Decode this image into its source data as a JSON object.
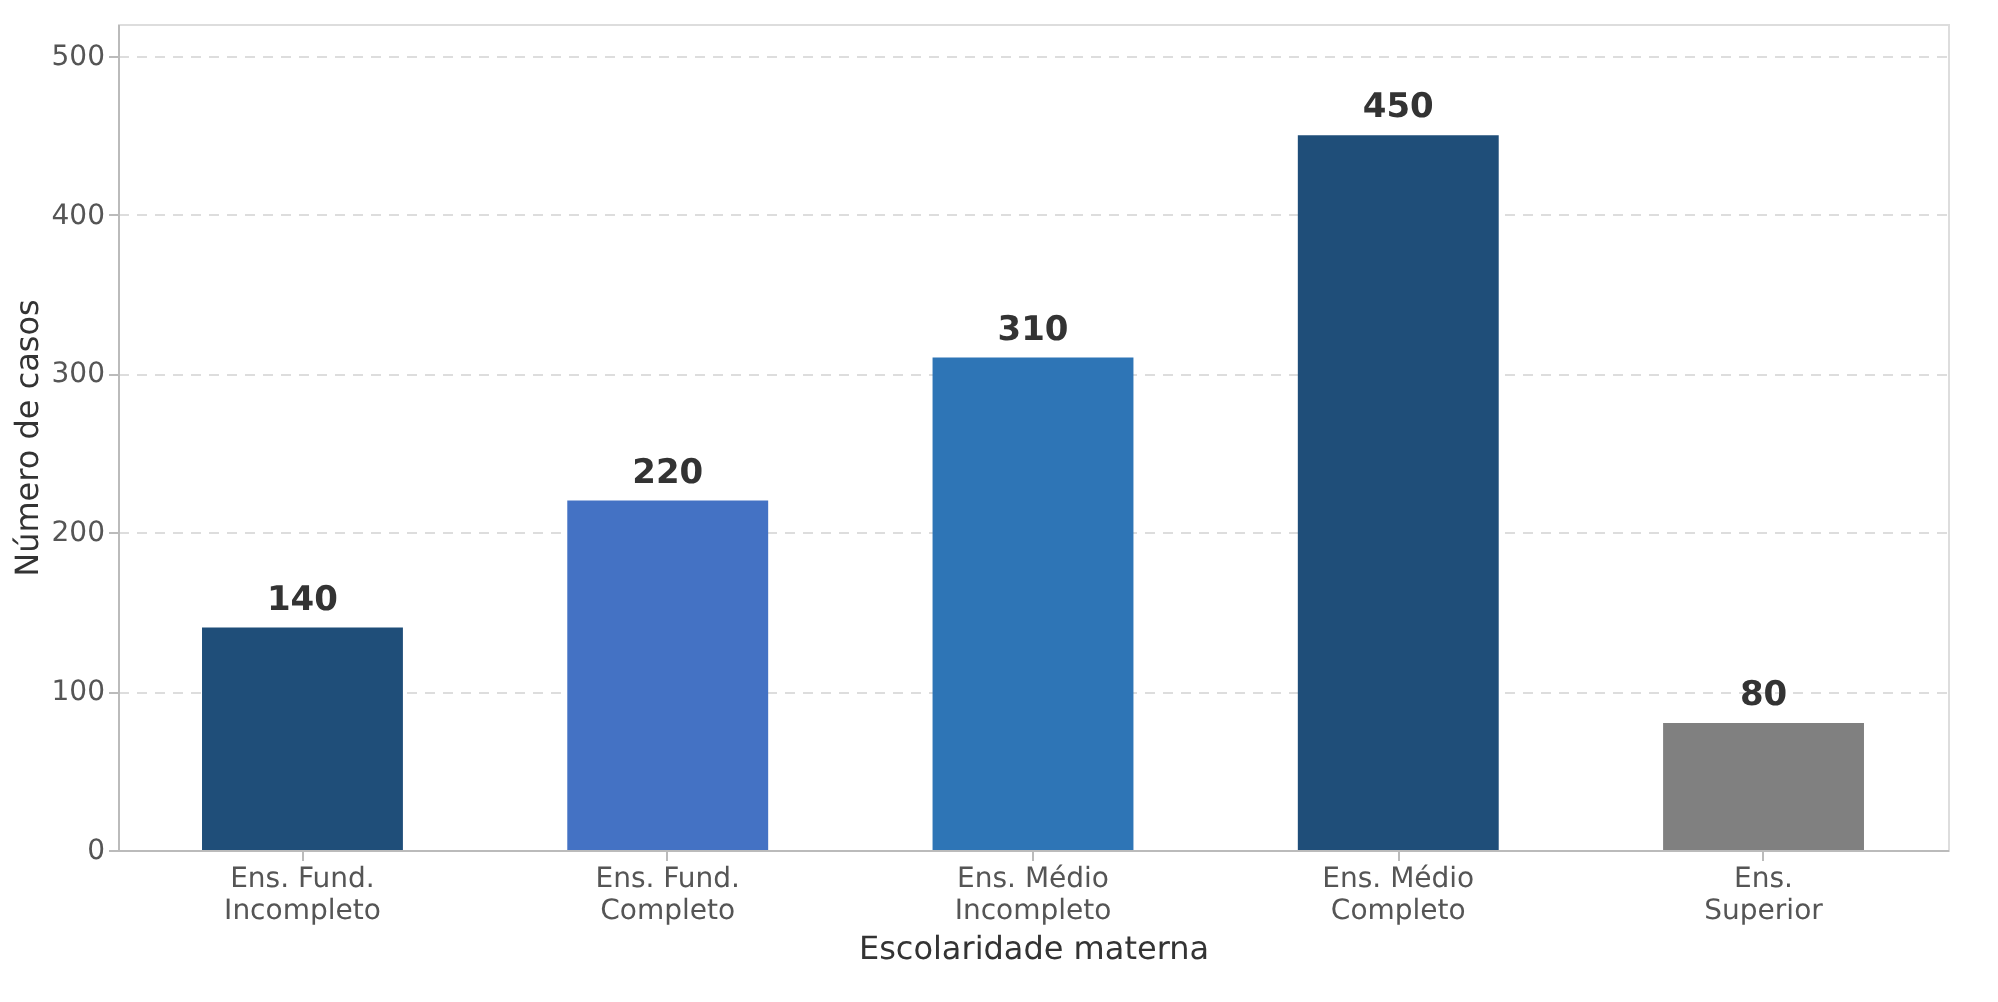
{
  "chart_data": {
    "type": "bar",
    "xlabel": "Escolaridade materna",
    "ylabel": "Número de casos",
    "categories": [
      "Ens. Fund.\nIncompleto",
      "Ens. Fund.\nCompleto",
      "Ens. Médio\nIncompleto",
      "Ens. Médio\nCompleto",
      "Ens.\nSuperior"
    ],
    "values": [
      140,
      220,
      310,
      450,
      80
    ],
    "colors": [
      "#1f4e79",
      "#4472c4",
      "#2e75b6",
      "#1f4e79",
      "#808080"
    ],
    "ylim": [
      0,
      520
    ],
    "yticks": [
      0,
      100,
      200,
      300,
      400,
      500
    ],
    "grid": "y",
    "data_labels": true
  }
}
